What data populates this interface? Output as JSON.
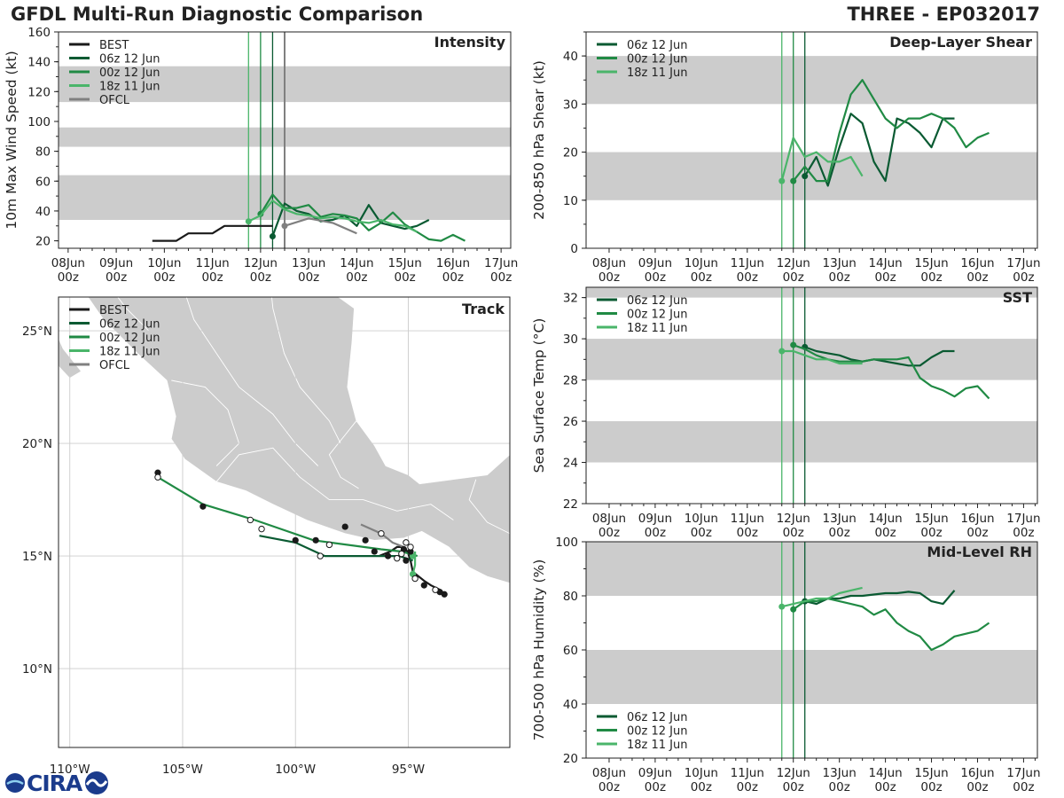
{
  "title": "GFDL Multi-Run Diagnostic Comparison",
  "storm": "THREE - EP032017",
  "logo_text": "CIRA",
  "colors": {
    "best": "#1a1a1a",
    "r06": "#0a5a32",
    "r00": "#208a44",
    "r18": "#4ab56a",
    "ofcl": "#808080",
    "band": "#cccccc",
    "land": "#cccccc",
    "border": "#ffffff",
    "grid": "#cccccc",
    "axis": "#222222"
  },
  "time_ticks": [
    "08Jun",
    "09Jun",
    "10Jun",
    "11Jun",
    "12Jun",
    "13Jun",
    "14Jun",
    "15Jun",
    "16Jun",
    "17Jun"
  ],
  "time_ticks_hour": "00z",
  "chart_data": [
    {
      "id": "intensity",
      "type": "line",
      "title": "Intensity",
      "ylabel": "10m Max Wind Speed (kt)",
      "xlabel": "",
      "ylim": [
        15,
        160
      ],
      "yticks": [
        20,
        40,
        60,
        80,
        100,
        120,
        140,
        160
      ],
      "xlim_day": [
        -0.2,
        9.2
      ],
      "bands": [
        [
          34,
          64
        ],
        [
          83,
          96
        ],
        [
          113,
          137
        ]
      ],
      "vlines": [
        {
          "day": 3.75,
          "series": "r18"
        },
        {
          "day": 4.0,
          "series": "r00"
        },
        {
          "day": 4.25,
          "series": "r06"
        },
        {
          "day": 4.5,
          "series": "ofcl"
        }
      ],
      "legend": [
        "BEST",
        "06z 12 Jun",
        "00z 12 Jun",
        "18z 11 Jun",
        "OFCL"
      ],
      "series": [
        {
          "name": "BEST",
          "key": "best",
          "x": [
            1.75,
            2.0,
            2.25,
            2.5,
            2.75,
            3.0,
            3.25,
            3.5,
            3.75,
            4.0,
            4.25
          ],
          "y": [
            20,
            20,
            20,
            25,
            25,
            25,
            30,
            30,
            30,
            30,
            30
          ]
        },
        {
          "name": "06z 12 Jun",
          "key": "r06",
          "x": [
            4.25,
            4.5,
            4.75,
            5.0,
            5.25,
            5.5,
            5.75,
            6.0,
            6.25,
            6.5,
            6.75,
            7.0,
            7.25,
            7.5
          ],
          "y": [
            23,
            45,
            40,
            38,
            33,
            34,
            37,
            30,
            44,
            32,
            30,
            28,
            30,
            34
          ]
        },
        {
          "name": "00z 12 Jun",
          "key": "r00",
          "x": [
            4.0,
            4.25,
            4.5,
            4.75,
            5.0,
            5.25,
            5.5,
            5.75,
            6.0,
            6.25,
            6.5,
            6.75,
            7.0,
            7.25,
            7.5,
            7.75,
            8.0,
            8.25
          ],
          "y": [
            38,
            51,
            42,
            42,
            44,
            36,
            38,
            37,
            35,
            27,
            32,
            39,
            31,
            26,
            21,
            20,
            24,
            20
          ]
        },
        {
          "name": "18z 11 Jun",
          "key": "r18",
          "x": [
            3.75,
            4.0,
            4.25,
            4.5,
            4.75,
            5.0,
            5.25,
            5.5,
            5.75,
            6.0,
            6.25,
            6.5,
            6.75,
            7.0,
            7.25
          ],
          "y": [
            33,
            37,
            47,
            41,
            38,
            37,
            35,
            36,
            35,
            33,
            32,
            34,
            31,
            30,
            26
          ]
        },
        {
          "name": "OFCL",
          "key": "ofcl",
          "x": [
            4.5,
            5.0,
            5.5,
            6.0
          ],
          "y": [
            30,
            35,
            32,
            25
          ]
        }
      ]
    },
    {
      "id": "shear",
      "type": "line",
      "title": "Deep-Layer Shear",
      "ylabel": "200-850 hPa Shear (kt)",
      "xlabel": "",
      "ylim": [
        0,
        45
      ],
      "yticks": [
        0,
        10,
        20,
        30,
        40
      ],
      "xlim_day": [
        -0.5,
        9.3
      ],
      "bands": [
        [
          10,
          20
        ],
        [
          30,
          40
        ]
      ],
      "vlines": [
        {
          "day": 3.75,
          "series": "r18"
        },
        {
          "day": 4.0,
          "series": "r00"
        },
        {
          "day": 4.25,
          "series": "r06"
        }
      ],
      "legend": [
        "06z 12 Jun",
        "00z 12 Jun",
        "18z 11 Jun"
      ],
      "series": [
        {
          "name": "06z 12 Jun",
          "key": "r06",
          "x": [
            4.25,
            4.5,
            4.75,
            5.0,
            5.25,
            5.5,
            5.75,
            6.0,
            6.25,
            6.5,
            6.75,
            7.0,
            7.25,
            7.5
          ],
          "y": [
            15,
            19,
            13,
            21,
            28,
            26,
            18,
            14,
            27,
            26,
            24,
            21,
            27,
            27
          ]
        },
        {
          "name": "00z 12 Jun",
          "key": "r00",
          "x": [
            4.0,
            4.25,
            4.5,
            4.75,
            5.0,
            5.25,
            5.5,
            5.75,
            6.0,
            6.25,
            6.5,
            6.75,
            7.0,
            7.25,
            7.5,
            7.75,
            8.0,
            8.25
          ],
          "y": [
            14,
            17,
            14,
            14,
            24,
            32,
            35,
            31,
            27,
            25,
            27,
            27,
            28,
            27,
            25,
            21,
            23,
            24
          ]
        },
        {
          "name": "18z 11 Jun",
          "key": "r18",
          "x": [
            3.75,
            4.0,
            4.25,
            4.5,
            4.75,
            5.0,
            5.25,
            5.5
          ],
          "y": [
            14,
            23,
            19,
            20,
            18,
            18,
            19,
            15
          ]
        }
      ]
    },
    {
      "id": "sst",
      "type": "line",
      "title": "SST",
      "ylabel": "Sea Surface Temp (°C)",
      "xlabel": "",
      "ylim": [
        22,
        32.5
      ],
      "yticks": [
        22,
        24,
        26,
        28,
        30,
        32
      ],
      "xlim_day": [
        -0.5,
        9.3
      ],
      "bands": [
        [
          24,
          26
        ],
        [
          28,
          30
        ],
        [
          32,
          32.5
        ]
      ],
      "vlines": [
        {
          "day": 3.75,
          "series": "r18"
        },
        {
          "day": 4.0,
          "series": "r00"
        },
        {
          "day": 4.25,
          "series": "r06"
        }
      ],
      "legend": [
        "06z 12 Jun",
        "00z 12 Jun",
        "18z 11 Jun"
      ],
      "series": [
        {
          "name": "06z 12 Jun",
          "key": "r06",
          "x": [
            4.25,
            4.5,
            4.75,
            5.0,
            5.25,
            5.5,
            5.75,
            6.0,
            6.25,
            6.5,
            6.75,
            7.0,
            7.25,
            7.5
          ],
          "y": [
            29.6,
            29.4,
            29.3,
            29.2,
            29.0,
            28.9,
            29.0,
            28.9,
            28.8,
            28.7,
            28.7,
            29.1,
            29.4,
            29.4
          ]
        },
        {
          "name": "00z 12 Jun",
          "key": "r00",
          "x": [
            4.0,
            4.25,
            4.5,
            4.75,
            5.0,
            5.25,
            5.5,
            5.75,
            6.0,
            6.25,
            6.5,
            6.75,
            7.0,
            7.25,
            7.5,
            7.75,
            8.0,
            8.25
          ],
          "y": [
            29.7,
            29.5,
            29.2,
            29.0,
            28.9,
            28.9,
            28.9,
            29.0,
            29.0,
            29.0,
            29.1,
            28.1,
            27.7,
            27.5,
            27.2,
            27.6,
            27.7,
            27.1
          ]
        },
        {
          "name": "18z 11 Jun",
          "key": "r18",
          "x": [
            3.75,
            4.0,
            4.25,
            4.5,
            4.75,
            5.0,
            5.25,
            5.5
          ],
          "y": [
            29.4,
            29.4,
            29.2,
            29.0,
            29.0,
            28.8,
            28.8,
            28.8
          ]
        }
      ]
    },
    {
      "id": "rh",
      "type": "line",
      "title": "Mid-Level RH",
      "ylabel": "700-500 hPa Humidity (%)",
      "xlabel": "",
      "ylim": [
        20,
        100
      ],
      "yticks": [
        20,
        40,
        60,
        80,
        100
      ],
      "xlim_day": [
        -0.5,
        9.3
      ],
      "bands": [
        [
          40,
          60
        ],
        [
          80,
          100
        ]
      ],
      "vlines": [
        {
          "day": 3.75,
          "series": "r18"
        },
        {
          "day": 4.0,
          "series": "r00"
        },
        {
          "day": 4.25,
          "series": "r06"
        }
      ],
      "legend": [
        "06z 12 Jun",
        "00z 12 Jun",
        "18z 11 Jun"
      ],
      "series": [
        {
          "name": "06z 12 Jun",
          "key": "r06",
          "x": [
            4.25,
            4.5,
            4.75,
            5.0,
            5.25,
            5.5,
            5.75,
            6.0,
            6.25,
            6.5,
            6.75,
            7.0,
            7.25,
            7.5
          ],
          "y": [
            78,
            77,
            79,
            79,
            80,
            80,
            80.5,
            81,
            81,
            81.5,
            81,
            78,
            77,
            82
          ]
        },
        {
          "name": "00z 12 Jun",
          "key": "r00",
          "x": [
            4.0,
            4.25,
            4.5,
            4.75,
            5.0,
            5.25,
            5.5,
            5.75,
            6.0,
            6.25,
            6.5,
            6.75,
            7.0,
            7.25,
            7.5,
            7.75,
            8.0,
            8.25
          ],
          "y": [
            75,
            78,
            78,
            79,
            78,
            77,
            76,
            73,
            75,
            70,
            67,
            65,
            60,
            62,
            65,
            66,
            67,
            70
          ]
        },
        {
          "name": "18z 11 Jun",
          "key": "r18",
          "x": [
            3.75,
            4.0,
            4.25,
            4.5,
            4.75,
            5.0,
            5.25,
            5.5
          ],
          "y": [
            76,
            77,
            78,
            79,
            79,
            81,
            82,
            83
          ]
        }
      ]
    },
    {
      "id": "track",
      "type": "scatter",
      "title": "Track",
      "xlabel": "",
      "ylabel": "",
      "xlim": [
        -110.5,
        -90.5
      ],
      "ylim": [
        6.5,
        26.5
      ],
      "xticks": [
        -110,
        -105,
        -100,
        -95
      ],
      "xtick_labels": [
        "110°W",
        "105°W",
        "100°W",
        "95°W"
      ],
      "yticks": [
        10,
        15,
        20,
        25
      ],
      "ytick_labels": [
        "10°N",
        "15°N",
        "20°N",
        "25°N"
      ],
      "legend": [
        "BEST",
        "06z 12 Jun",
        "00z 12 Jun",
        "18z 11 Jun",
        "OFCL"
      ],
      "series": [
        {
          "name": "BEST",
          "key": "best",
          "lon": [
            -93.4,
            -93.6,
            -94.0,
            -94.3,
            -94.8,
            -94.9,
            -95.0,
            -95.1,
            -95.3,
            -95.5,
            -95.8,
            -96.3
          ],
          "lat": [
            13.3,
            13.5,
            13.7,
            13.9,
            14.3,
            14.8,
            15.1,
            15.3,
            15.4,
            15.4,
            15.2,
            15.0
          ]
        },
        {
          "name": "06z 12 Jun",
          "key": "r06",
          "lon": [
            -94.8,
            -95.4,
            -96.5,
            -98.7,
            -100.0,
            -101.6
          ],
          "lat": [
            14.8,
            15.0,
            15.0,
            15.0,
            15.6,
            15.9
          ]
        },
        {
          "name": "00z 12 Jun",
          "key": "r00",
          "lon": [
            -94.6,
            -95.3,
            -96.2,
            -99.2,
            -101.8,
            -104.1,
            -106.1
          ],
          "lat": [
            15.0,
            15.2,
            15.3,
            15.7,
            16.6,
            17.3,
            18.5
          ]
        },
        {
          "name": "18z 11 Jun",
          "key": "r18",
          "lon": [
            -94.8,
            -94.7,
            -94.7
          ],
          "lat": [
            14.2,
            14.6,
            15.2
          ]
        },
        {
          "name": "OFCL",
          "key": "ofcl",
          "lon": [
            -95.2,
            -95.7,
            -96.2,
            -97.1
          ],
          "lat": [
            15.4,
            15.6,
            16.0,
            16.4
          ]
        }
      ],
      "markers_filled": [
        {
          "key": "best",
          "lon": -93.4,
          "lat": 13.3
        },
        {
          "key": "best",
          "lon": -93.6,
          "lat": 13.4
        },
        {
          "key": "best",
          "lon": -94.3,
          "lat": 13.7
        },
        {
          "key": "best",
          "lon": -95.1,
          "lat": 14.8
        },
        {
          "key": "best",
          "lon": -95.2,
          "lat": 15.3
        },
        {
          "key": "best",
          "lon": -95.9,
          "lat": 15.0
        },
        {
          "key": "best",
          "lon": -96.5,
          "lat": 15.2
        },
        {
          "key": "best",
          "lon": -96.9,
          "lat": 15.7
        },
        {
          "key": "best",
          "lon": -97.8,
          "lat": 16.3
        },
        {
          "key": "best",
          "lon": -99.1,
          "lat": 15.7
        },
        {
          "key": "best",
          "lon": -100.0,
          "lat": 15.7
        },
        {
          "key": "best",
          "lon": -104.1,
          "lat": 17.2
        },
        {
          "key": "best",
          "lon": -106.1,
          "lat": 18.7
        },
        {
          "key": "r18",
          "lon": -94.8,
          "lat": 14.2
        },
        {
          "key": "r18",
          "lon": -94.8,
          "lat": 15.0
        },
        {
          "key": "best",
          "lon": -94.9,
          "lat": 15.2
        }
      ],
      "markers_open": [
        {
          "lon": -93.8,
          "lat": 13.5
        },
        {
          "lon": -94.7,
          "lat": 14.0
        },
        {
          "lon": -95.5,
          "lat": 14.9
        },
        {
          "lon": -94.9,
          "lat": 15.4
        },
        {
          "lon": -95.3,
          "lat": 15.1
        },
        {
          "lon": -95.1,
          "lat": 15.6
        },
        {
          "lon": -96.2,
          "lat": 16.0
        },
        {
          "lon": -98.5,
          "lat": 15.5
        },
        {
          "lon": -98.9,
          "lat": 15.0
        },
        {
          "lon": -101.5,
          "lat": 16.2
        },
        {
          "lon": -102.0,
          "lat": 16.6
        },
        {
          "lon": -106.1,
          "lat": 18.5
        }
      ]
    }
  ]
}
